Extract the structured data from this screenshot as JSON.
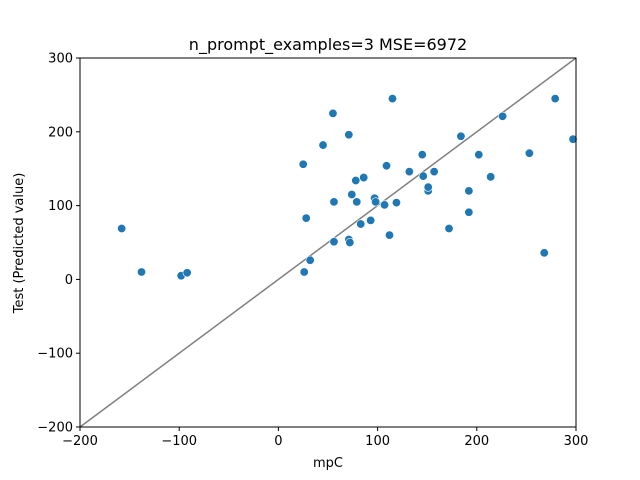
{
  "chart_data": {
    "type": "scatter",
    "title": "n_prompt_examples=3 MSE=6972",
    "xlabel": "mpC",
    "ylabel": "Test (Predicted value)",
    "xlim": [
      -200,
      300
    ],
    "ylim": [
      -200,
      300
    ],
    "xticks": [
      -200,
      -100,
      0,
      100,
      200,
      300
    ],
    "yticks": [
      -200,
      -100,
      0,
      100,
      200,
      300
    ],
    "grid": false,
    "point_color": "#1f77b4",
    "reference_line": {
      "from": [
        -200,
        -200
      ],
      "to": [
        300,
        300
      ],
      "color": "#808080"
    },
    "series": [
      {
        "points": [
          [
            -158,
            69
          ],
          [
            -138,
            10
          ],
          [
            -98,
            5
          ],
          [
            -92,
            9
          ],
          [
            25,
            156
          ],
          [
            26,
            10
          ],
          [
            28,
            83
          ],
          [
            32,
            26
          ],
          [
            45,
            182
          ],
          [
            55,
            225
          ],
          [
            56,
            51
          ],
          [
            56,
            105
          ],
          [
            71,
            196
          ],
          [
            71,
            54
          ],
          [
            72,
            50
          ],
          [
            74,
            115
          ],
          [
            78,
            134
          ],
          [
            79,
            105
          ],
          [
            83,
            75
          ],
          [
            86,
            138
          ],
          [
            93,
            80
          ],
          [
            97,
            110
          ],
          [
            98,
            105
          ],
          [
            107,
            101
          ],
          [
            109,
            154
          ],
          [
            112,
            60
          ],
          [
            115,
            245
          ],
          [
            119,
            104
          ],
          [
            132,
            146
          ],
          [
            145,
            169
          ],
          [
            146,
            140
          ],
          [
            151,
            120
          ],
          [
            151,
            125
          ],
          [
            157,
            146
          ],
          [
            172,
            69
          ],
          [
            184,
            194
          ],
          [
            192,
            120
          ],
          [
            192,
            91
          ],
          [
            202,
            169
          ],
          [
            214,
            139
          ],
          [
            226,
            221
          ],
          [
            253,
            171
          ],
          [
            268,
            36
          ],
          [
            279,
            245
          ],
          [
            297,
            190
          ]
        ]
      }
    ]
  }
}
